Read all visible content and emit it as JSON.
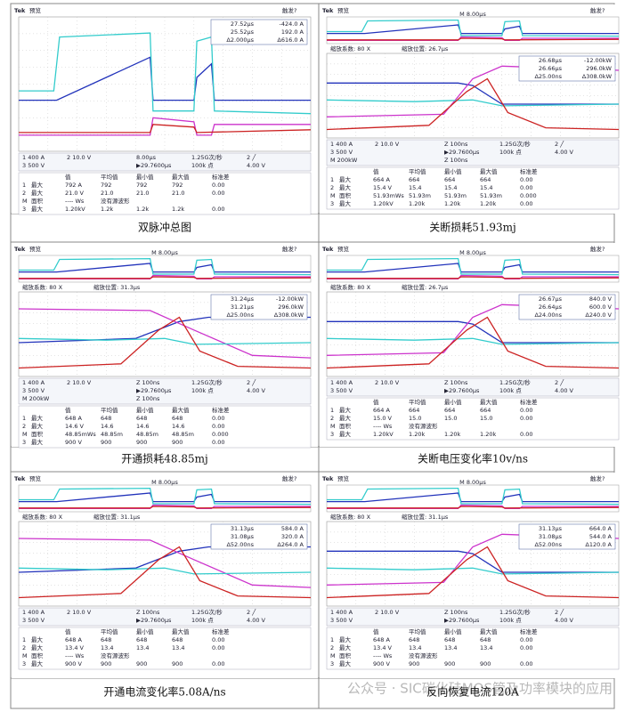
{
  "watermark": "公众号 · SIC碳化硅MOS管及功率模块的应用",
  "stats_header": [
    "值",
    "平均值",
    "最小值",
    "最大值",
    "标准差"
  ],
  "panels": [
    {
      "caption": "双脉冲总图",
      "brand": "Tek",
      "mode": "预览",
      "trigger": "触发?",
      "cursor": [
        [
          "27.52μs",
          "-424.0 A"
        ],
        [
          "25.52μs",
          "192.0 A"
        ],
        [
          "Δ2.000μs",
          "Δ616.0 A"
        ]
      ],
      "readout": [
        {
          "left": [
            "1 400 A",
            "2 10.0 V"
          ],
          "right": [
            "8.00μs",
            "1.25G次/秒",
            "2 ╱"
          ]
        },
        {
          "left": [
            "3 500 V"
          ],
          "right": [
            "▶29.7600μs",
            "100k 点",
            "4.00 V"
          ]
        }
      ],
      "stats": [
        [
          "1",
          "最大",
          "792 A",
          "792",
          "792",
          "792",
          "0.00"
        ],
        [
          "2",
          "最大",
          "21.0 V",
          "21.0",
          "21.0",
          "21.0",
          "0.00"
        ],
        [
          "M",
          "面积",
          "---- Ws",
          "没有源波形"
        ],
        [
          "3",
          "最大",
          "1.20kV",
          "1.2k",
          "1.2k",
          "1.2k",
          "0.00"
        ]
      ]
    },
    {
      "caption": "关断损耗51.93mj",
      "brand": "Tek",
      "mode": "预览",
      "trigger": "触发?",
      "timebase": "M 8.00μs",
      "zoom": [
        "缩放系数: 80 X",
        "缩放位置: 26.7μs"
      ],
      "cursor": [
        [
          "26.68μs",
          "-12.00kW"
        ],
        [
          "26.66μs",
          "296.0kW"
        ],
        [
          "Δ25.00ns",
          "Δ308.0kW"
        ]
      ],
      "readout": [
        {
          "left": [
            "1 400 A",
            "2 10.0 V"
          ],
          "right": [
            "Z 100ns",
            "1.25G次/秒",
            "2 ╱"
          ]
        },
        {
          "left": [
            "3 500 V"
          ],
          "right": [
            "▶29.7600μs",
            "100k 点",
            "4.00 V"
          ]
        },
        {
          "left": [
            "M 200kW"
          ],
          "right": [
            "Z 100ns"
          ]
        }
      ],
      "stats": [
        [
          "1",
          "最大",
          "664 A",
          "664",
          "664",
          "664",
          "0.00"
        ],
        [
          "2",
          "最大",
          "15.4 V",
          "15.4",
          "15.4",
          "15.4",
          "0.00"
        ],
        [
          "M",
          "面积",
          "51.93mWs",
          "51.93m",
          "51.93m",
          "51.93m",
          "0.000"
        ],
        [
          "3",
          "最大",
          "1.20kV",
          "1.20k",
          "1.20k",
          "1.20k",
          "0.00"
        ]
      ]
    },
    {
      "caption": "开通损耗48.85mj",
      "brand": "Tek",
      "mode": "预览",
      "trigger": "触发?",
      "timebase": "M 8.00μs",
      "zoom": [
        "缩放系数: 80 X",
        "缩放位置: 31.3μs"
      ],
      "cursor": [
        [
          "31.24μs",
          "-12.00kW"
        ],
        [
          "31.21μs",
          "296.0kW"
        ],
        [
          "Δ25.00ns",
          "Δ308.0kW"
        ]
      ],
      "readout": [
        {
          "left": [
            "1 400 A",
            "2 10.0 V"
          ],
          "right": [
            "Z 100ns",
            "1.25G次/秒",
            "2 ╱"
          ]
        },
        {
          "left": [
            "3 500 V"
          ],
          "right": [
            "▶29.7600μs",
            "100k 点",
            "4.00 V"
          ]
        },
        {
          "left": [
            "M 200kW"
          ],
          "right": [
            "Z 100ns"
          ]
        }
      ],
      "stats": [
        [
          "1",
          "最大",
          "648 A",
          "648",
          "648",
          "648",
          "0.00"
        ],
        [
          "2",
          "最大",
          "14.6 V",
          "14.6",
          "14.6",
          "14.6",
          "0.00"
        ],
        [
          "M",
          "面积",
          "48.85mWs",
          "48.85m",
          "48.85m",
          "48.85m",
          "0.000"
        ],
        [
          "3",
          "最大",
          "900 V",
          "900",
          "900",
          "900",
          "0.00"
        ]
      ]
    },
    {
      "caption": "关断电压变化率10v/ns",
      "brand": "Tek",
      "mode": "预览",
      "trigger": "触发?",
      "timebase": "M 8.00μs",
      "zoom": [
        "缩放系数: 80 X",
        "缩放位置: 26.7μs"
      ],
      "cursor": [
        [
          "26.67μs",
          "840.0 V"
        ],
        [
          "26.64μs",
          "600.0 V"
        ],
        [
          "Δ24.00ns",
          "Δ240.0 V"
        ]
      ],
      "readout": [
        {
          "left": [
            "1 400 A",
            "2 10.0 V"
          ],
          "right": [
            "Z 100ns",
            "1.25G次/秒",
            "2 ╱"
          ]
        },
        {
          "left": [
            "3 500 V"
          ],
          "right": [
            "▶29.7600μs",
            "100k 点",
            "4.00 V"
          ]
        }
      ],
      "stats": [
        [
          "1",
          "最大",
          "664 A",
          "664",
          "664",
          "664",
          "0.00"
        ],
        [
          "2",
          "最大",
          "15.0 V",
          "15.0",
          "15.0",
          "15.0",
          "0.00"
        ],
        [
          "M",
          "面积",
          "---- Ws",
          "没有源波形"
        ],
        [
          "3",
          "最大",
          "1.20kV",
          "1.20k",
          "1.20k",
          "1.20k",
          "0.00"
        ]
      ]
    },
    {
      "caption": "开通电流变化率5.08A/ns",
      "brand": "Tek",
      "mode": "预览",
      "trigger": "触发?",
      "timebase": "M 8.00μs",
      "zoom": [
        "缩放系数: 80 X",
        "缩放位置: 31.1μs"
      ],
      "cursor": [
        [
          "31.13μs",
          "584.0 A"
        ],
        [
          "31.08μs",
          "320.0 A"
        ],
        [
          "Δ52.00ns",
          "Δ264.0 A"
        ]
      ],
      "readout": [
        {
          "left": [
            "1 400 A",
            "2 10.0 V"
          ],
          "right": [
            "Z 100ns",
            "1.25G次/秒",
            "2 ╱"
          ]
        },
        {
          "left": [
            "3 500 V"
          ],
          "right": [
            "▶29.7600μs",
            "100k 点",
            "4.00 V"
          ]
        }
      ],
      "stats": [
        [
          "1",
          "最大",
          "648 A",
          "648",
          "648",
          "648",
          "0.00"
        ],
        [
          "2",
          "最大",
          "13.4 V",
          "13.4",
          "13.4",
          "13.4",
          "0.00"
        ],
        [
          "M",
          "面积",
          "---- Ws",
          "没有源波形"
        ],
        [
          "3",
          "最大",
          "900 V",
          "900",
          "900",
          "900",
          "0.00"
        ]
      ]
    },
    {
      "caption": "反向恢复电流120A",
      "brand": "Tek",
      "mode": "预览",
      "trigger": "触发?",
      "timebase": "M 8.00μs",
      "zoom": [
        "缩放系数: 80 X",
        "缩放位置: 31.1μs"
      ],
      "cursor": [
        [
          "31.13μs",
          "664.0 A"
        ],
        [
          "31.08μs",
          "544.0 A"
        ],
        [
          "Δ52.00ns",
          "Δ120.0 A"
        ]
      ],
      "readout": [
        {
          "left": [
            "1 400 A",
            "2 10.0 V"
          ],
          "right": [
            "Z 100ns",
            "1.25G次/秒",
            "2 ╱"
          ]
        },
        {
          "left": [
            "3 500 V"
          ],
          "right": [
            "▶29.7600μs",
            "100k 点",
            "4.00 V"
          ]
        }
      ],
      "stats": [
        [
          "1",
          "最大",
          "648 A",
          "648",
          "648",
          "648",
          "0.00"
        ],
        [
          "2",
          "最大",
          "13.4 V",
          "13.4",
          "13.4",
          "13.4",
          "0.00"
        ],
        [
          "M",
          "面积",
          "---- Ws",
          "没有源波形"
        ],
        [
          "3",
          "最大",
          "900 V",
          "900",
          "900",
          "900",
          "0.00"
        ]
      ]
    }
  ]
}
